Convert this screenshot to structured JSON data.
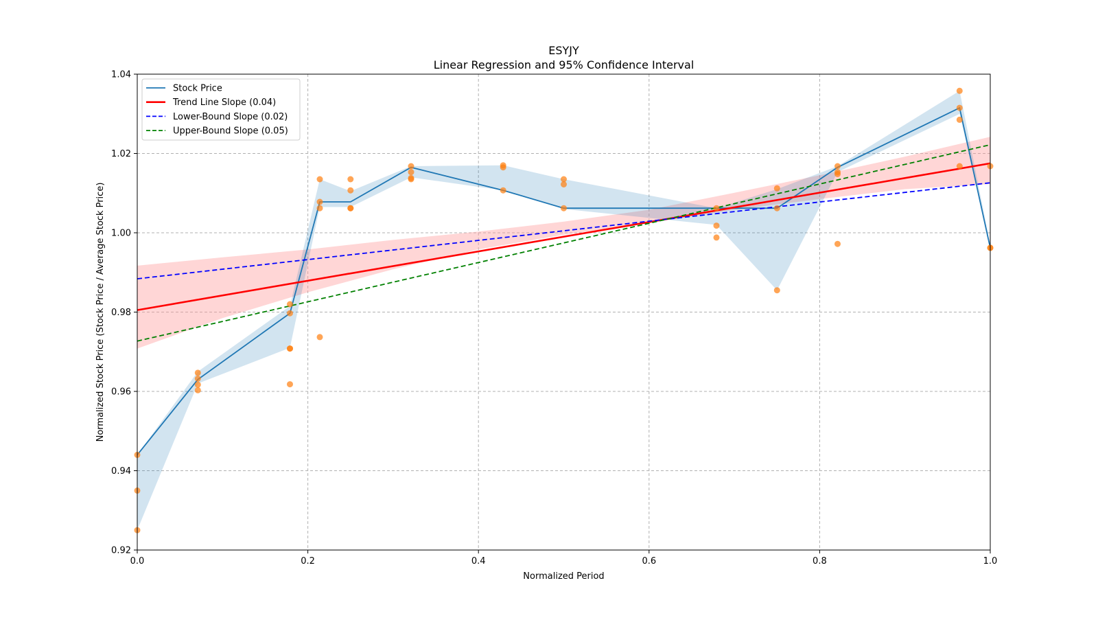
{
  "chart_data": {
    "type": "line",
    "title": "ESYJY",
    "subtitle": "Linear Regression and 95% Confidence Interval",
    "xlabel": "Normalized Period",
    "ylabel": "Normalized Stock Price (Stock Price / Average Stock Price)",
    "xlim": [
      0.0,
      1.0
    ],
    "ylim": [
      0.92,
      1.04
    ],
    "x_ticks": [
      "0.0",
      "0.2",
      "0.4",
      "0.6",
      "0.8",
      "1.0"
    ],
    "y_ticks": [
      "0.92",
      "0.94",
      "0.96",
      "0.98",
      "1.00",
      "1.02",
      "1.04"
    ],
    "grid": true,
    "legend_position": "top-left",
    "colors": {
      "stock": "#1f77b4",
      "band_stock": "#1f77b4",
      "trend": "#ff0000",
      "band_trend": "#ff9999",
      "lower": "#0000ff",
      "upper": "#008000",
      "scatter": "#ff7f0e"
    },
    "legend": [
      {
        "key": "stock",
        "label": "Stock Price",
        "style": "solid"
      },
      {
        "key": "trend",
        "label": "Trend Line Slope (0.04)",
        "style": "solid"
      },
      {
        "key": "lower",
        "label": "Lower-Bound Slope (0.02)",
        "style": "dashed"
      },
      {
        "key": "upper",
        "label": "Upper-Bound Slope (0.05)",
        "style": "dashed"
      }
    ],
    "stock_line": {
      "x": [
        0.0,
        0.071,
        0.179,
        0.214,
        0.25,
        0.321,
        0.429,
        0.5,
        0.679,
        0.75,
        0.821,
        0.964,
        1.0
      ],
      "y": [
        0.944,
        0.963,
        0.9797,
        1.0078,
        1.0078,
        1.0165,
        1.0107,
        1.0062,
        1.0062,
        1.0062,
        1.0165,
        1.0315,
        0.9962
      ],
      "lo": [
        0.925,
        0.962,
        0.971,
        1.0065,
        1.0065,
        1.014,
        1.0107,
        1.006,
        1.002,
        0.9855,
        1.0153,
        1.03,
        0.9962
      ],
      "hi": [
        0.944,
        0.965,
        0.9815,
        1.0135,
        1.0105,
        1.0168,
        1.017,
        1.0135,
        1.0062,
        1.011,
        1.0168,
        1.0358,
        0.997
      ]
    },
    "trend_line": {
      "x": [
        0.0,
        1.0
      ],
      "y": [
        0.9805,
        1.0175
      ]
    },
    "trend_band": {
      "x": [
        0.0,
        0.1,
        0.2,
        0.3,
        0.4,
        0.5,
        0.6,
        0.7,
        0.8,
        0.9,
        1.0
      ],
      "lo": [
        0.9708,
        0.9785,
        0.985,
        0.9908,
        0.9958,
        0.9995,
        1.0025,
        1.0058,
        1.0085,
        1.011,
        1.0123
      ],
      "hi": [
        0.9917,
        0.9938,
        0.9958,
        0.9982,
        1.0003,
        1.0028,
        1.0058,
        1.0101,
        1.0145,
        1.0192,
        1.0242
      ]
    },
    "lower_bound_line": {
      "x": [
        0.0,
        1.0
      ],
      "y": [
        0.9884,
        1.0126
      ]
    },
    "upper_bound_line": {
      "x": [
        0.0,
        1.0
      ],
      "y": [
        0.9727,
        1.0222
      ]
    },
    "scatter": {
      "x": [
        0.0,
        0.0,
        0.0,
        0.071,
        0.071,
        0.071,
        0.071,
        0.179,
        0.179,
        0.179,
        0.179,
        0.179,
        0.214,
        0.214,
        0.214,
        0.214,
        0.25,
        0.25,
        0.25,
        0.25,
        0.321,
        0.321,
        0.321,
        0.321,
        0.429,
        0.429,
        0.429,
        0.5,
        0.5,
        0.5,
        0.679,
        0.679,
        0.679,
        0.75,
        0.75,
        0.75,
        0.821,
        0.821,
        0.821,
        0.821,
        0.964,
        0.964,
        0.964,
        0.964,
        1.0,
        1.0,
        1.0
      ],
      "y": [
        0.944,
        0.935,
        0.925,
        0.9647,
        0.9632,
        0.9617,
        0.9603,
        0.982,
        0.9797,
        0.9708,
        0.9708,
        0.9618,
        1.0135,
        1.0078,
        1.0062,
        0.9737,
        1.0135,
        1.0107,
        1.0062,
        1.0062,
        1.0168,
        1.0153,
        1.0138,
        1.0135,
        1.017,
        1.0165,
        1.0107,
        1.0135,
        1.0122,
        1.0062,
        1.0062,
        1.0018,
        0.9988,
        1.0112,
        1.0062,
        0.9855,
        1.0168,
        1.0153,
        1.0148,
        0.9972,
        1.0358,
        1.0315,
        1.0285,
        1.0168,
        1.0168,
        0.9962,
        0.9962
      ]
    }
  }
}
